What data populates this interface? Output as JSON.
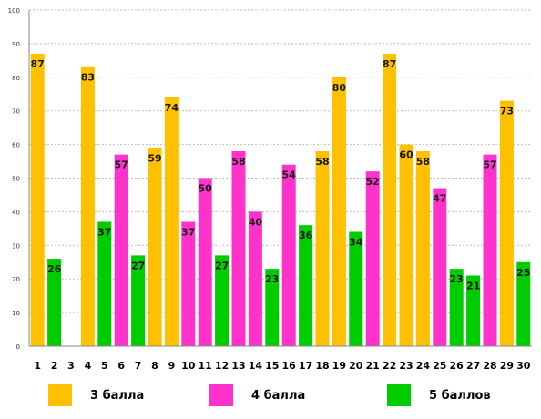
{
  "chart_data": {
    "type": "bar",
    "title": "",
    "xlabel": "",
    "ylabel": "",
    "ylim": [
      0,
      100
    ],
    "yticks": [
      0,
      10,
      20,
      30,
      40,
      50,
      60,
      70,
      80,
      90,
      100
    ],
    "grid": true,
    "legend_position": "bottom",
    "categories": [
      "1",
      "2",
      "3",
      "4",
      "5",
      "6",
      "7",
      "8",
      "9",
      "10",
      "11",
      "12",
      "13",
      "14",
      "15",
      "16",
      "17",
      "18",
      "19",
      "20",
      "21",
      "22",
      "23",
      "24",
      "25",
      "26",
      "27",
      "28",
      "29",
      "30"
    ],
    "values": [
      87,
      26,
      null,
      83,
      37,
      57,
      27,
      59,
      74,
      37,
      50,
      27,
      58,
      40,
      23,
      54,
      36,
      58,
      80,
      34,
      52,
      87,
      60,
      58,
      47,
      23,
      21,
      57,
      73,
      25
    ],
    "grades": [
      3,
      5,
      null,
      3,
      5,
      4,
      5,
      3,
      3,
      4,
      4,
      5,
      4,
      4,
      5,
      4,
      5,
      3,
      3,
      5,
      4,
      3,
      3,
      3,
      4,
      5,
      5,
      4,
      3,
      5
    ],
    "series": [
      {
        "name": "3 балла",
        "grade": 3,
        "color": "#FFC000"
      },
      {
        "name": "4 балла",
        "grade": 4,
        "color": "#FF33CC"
      },
      {
        "name": "5 баллов",
        "grade": 5,
        "color": "#00CC00"
      }
    ]
  }
}
